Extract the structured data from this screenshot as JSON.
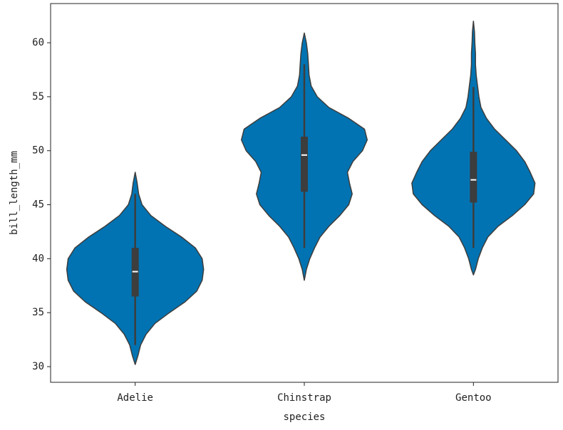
{
  "chart_data": {
    "type": "violin",
    "xlabel": "species",
    "ylabel": "bill_length_mm",
    "categories": [
      "Adelie",
      "Chinstrap",
      "Gentoo"
    ],
    "color": "#0173b2",
    "ylim": [
      28.55,
      63.63
    ],
    "yticks": [
      30,
      35,
      40,
      45,
      50,
      55,
      60
    ],
    "violins": [
      {
        "kde_y": [
          30.2,
          31,
          32,
          33,
          34,
          35,
          36,
          37,
          38,
          39,
          40,
          41,
          42,
          43,
          44,
          45,
          46,
          47,
          48
        ],
        "density": [
          0,
          0.04,
          0.08,
          0.16,
          0.29,
          0.5,
          0.73,
          0.9,
          0.98,
          1,
          0.98,
          0.88,
          0.68,
          0.44,
          0.23,
          0.1,
          0.05,
          0.03,
          0
        ],
        "whisker": [
          32,
          46
        ],
        "box": [
          36.5,
          41
        ],
        "median": 38.8
      },
      {
        "kde_y": [
          38,
          39,
          40,
          41,
          42,
          43,
          44,
          45,
          46,
          47,
          48,
          49,
          50,
          51,
          52,
          53,
          54,
          55,
          56,
          57,
          58,
          59,
          60,
          60.9
        ],
        "density": [
          0,
          0.03,
          0.08,
          0.15,
          0.23,
          0.36,
          0.52,
          0.65,
          0.7,
          0.66,
          0.63,
          0.71,
          0.85,
          0.92,
          0.88,
          0.65,
          0.36,
          0.19,
          0.1,
          0.07,
          0.06,
          0.05,
          0.03,
          0
        ],
        "whisker": [
          41,
          58
        ],
        "box": [
          46.2,
          51.3
        ],
        "median": 49.6
      },
      {
        "kde_y": [
          38.5,
          39,
          40,
          41,
          42,
          43,
          44,
          45,
          46,
          47,
          48,
          49,
          50,
          51,
          52,
          53,
          54,
          55,
          56,
          57,
          58,
          59,
          60,
          61,
          62
        ],
        "density": [
          0,
          0.03,
          0.07,
          0.13,
          0.21,
          0.36,
          0.57,
          0.75,
          0.88,
          0.9,
          0.83,
          0.75,
          0.63,
          0.47,
          0.31,
          0.19,
          0.11,
          0.08,
          0.06,
          0.04,
          0.03,
          0.03,
          0.02,
          0.015,
          0
        ],
        "whisker": [
          41,
          55.9
        ],
        "box": [
          45.2,
          49.9
        ],
        "median": 47.3
      }
    ]
  }
}
